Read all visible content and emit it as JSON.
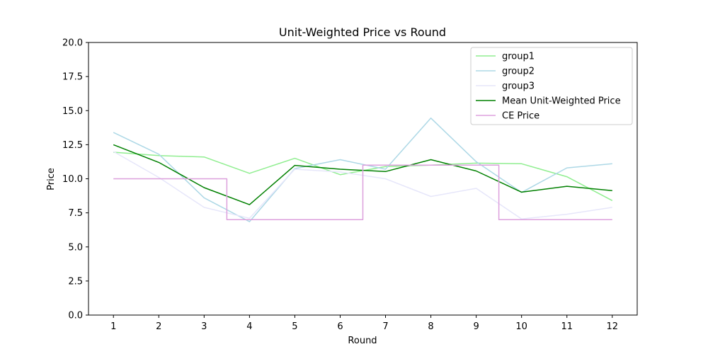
{
  "chart_data": {
    "type": "line",
    "title": "Unit-Weighted Price vs Round",
    "xlabel": "Round",
    "ylabel": "Price",
    "x": [
      1,
      2,
      3,
      4,
      5,
      6,
      7,
      8,
      9,
      10,
      11,
      12
    ],
    "xticks": [
      "1",
      "2",
      "3",
      "4",
      "5",
      "6",
      "7",
      "8",
      "9",
      "10",
      "11",
      "12"
    ],
    "ylim": [
      0,
      20
    ],
    "yticks": [
      "0.0",
      "2.5",
      "5.0",
      "7.5",
      "10.0",
      "12.5",
      "15.0",
      "17.5",
      "20.0"
    ],
    "grid": false,
    "legend_position": "top-right",
    "series": [
      {
        "name": "group1",
        "color": "#90ee90",
        "values": [
          11.95,
          11.7,
          11.6,
          10.4,
          11.5,
          10.3,
          10.9,
          11.0,
          11.15,
          11.1,
          10.15,
          8.4
        ]
      },
      {
        "name": "group2",
        "color": "#add8e6",
        "values": [
          13.4,
          11.8,
          8.6,
          6.85,
          10.75,
          11.4,
          10.7,
          14.45,
          11.25,
          9.0,
          10.8,
          11.1
        ]
      },
      {
        "name": "group3",
        "color": "#e6e6fa",
        "values": [
          12.0,
          10.1,
          7.9,
          7.1,
          10.7,
          10.5,
          10.0,
          8.7,
          9.3,
          7.05,
          7.4,
          7.9
        ]
      },
      {
        "name": "Mean Unit-Weighted Price",
        "color": "#008000",
        "values": [
          12.5,
          11.2,
          9.35,
          8.1,
          10.98,
          10.7,
          10.53,
          11.4,
          10.57,
          9.02,
          9.45,
          9.13
        ]
      },
      {
        "name": "CE Price",
        "color": "#dda0dd",
        "step": "mid",
        "values": [
          10,
          10,
          10,
          7,
          7,
          7,
          11,
          11,
          11,
          7,
          7,
          7
        ]
      }
    ]
  }
}
